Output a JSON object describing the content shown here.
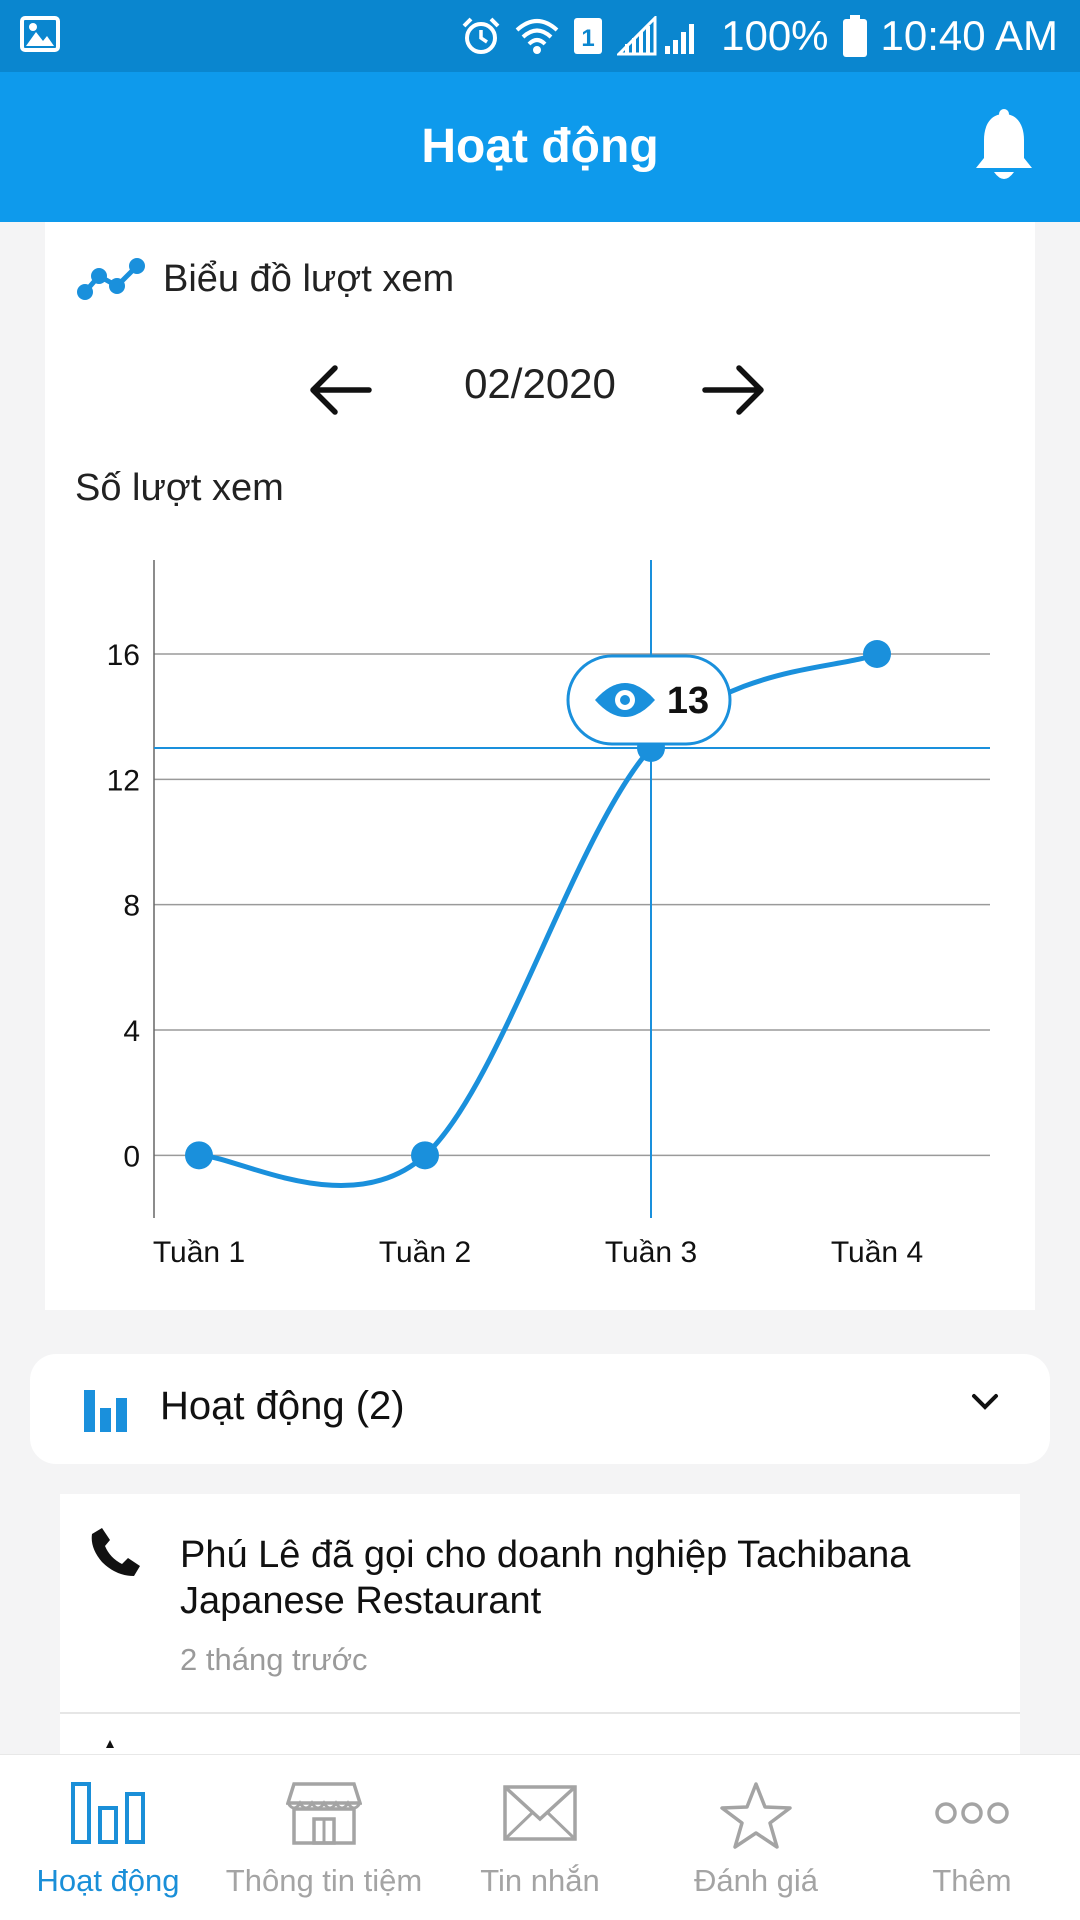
{
  "status_bar": {
    "battery": "100%",
    "time": "10:40 AM",
    "icons": [
      "gallery-icon",
      "alarm-icon",
      "wifi-icon",
      "sim1-icon",
      "signal-icon",
      "battery-icon"
    ]
  },
  "header": {
    "title": "Hoạt động",
    "bell_icon": "bell-icon"
  },
  "chart_card": {
    "title": "Biểu đồ lượt xem",
    "month": "02/2020",
    "prev_icon": "arrow-left-icon",
    "next_icon": "arrow-right-icon"
  },
  "chart_data": {
    "type": "line",
    "categories": [
      "Tuần 1",
      "Tuần 2",
      "Tuần 3",
      "Tuần 4"
    ],
    "values": [
      0,
      0,
      13,
      16
    ],
    "ylabel": "Số lượt xem",
    "yticks": [
      0,
      4,
      8,
      12,
      16
    ],
    "ylim": [
      -2,
      19
    ],
    "smooth": true,
    "grid": true,
    "line_color": "#1a90dc",
    "crosshair": {
      "category": "Tuần 3",
      "value": 13,
      "tooltip": "13"
    }
  },
  "activity": {
    "header_label": "Hoạt động (2)",
    "items": [
      {
        "text": "Phú Lê đã gọi cho doanh nghiệp Tachibana Japanese Restaurant",
        "time": "2 tháng trước",
        "icon": "phone-icon"
      }
    ]
  },
  "bottom_nav": {
    "items": [
      {
        "label": "Hoạt động",
        "icon": "activity-chart-icon",
        "active": true
      },
      {
        "label": "Thông tin tiệm",
        "icon": "store-icon",
        "active": false
      },
      {
        "label": "Tin nhắn",
        "icon": "mail-icon",
        "active": false
      },
      {
        "label": "Đánh giá",
        "icon": "star-icon",
        "active": false
      },
      {
        "label": "Thêm",
        "icon": "more-icon",
        "active": false
      }
    ]
  },
  "colors": {
    "status_bar": "#0a86cf",
    "header": "#0e9aec",
    "accent": "#1a90dc",
    "inactive": "#a4a4a4"
  }
}
